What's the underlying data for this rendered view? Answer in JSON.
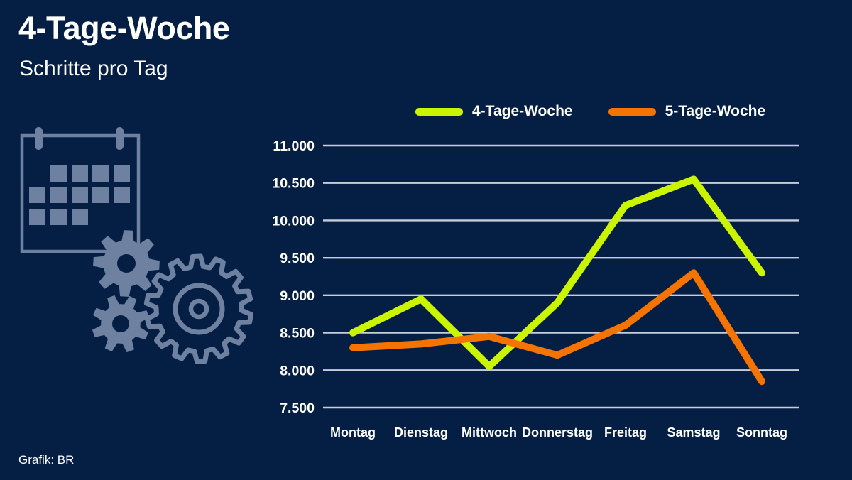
{
  "header": {
    "title": "4-Tage-Woche",
    "subtitle": "Schritte pro Tag"
  },
  "footer": {
    "credit": "Grafik: BR"
  },
  "colors": {
    "background": "#051f44",
    "grid": "#c7ceda",
    "text": "#ffffff",
    "icon": "#6e81a1"
  },
  "icon": {
    "name": "calendar-gears-icon",
    "description": "calendar with two small gears and one large outlined gear"
  },
  "chart_data": {
    "type": "line",
    "title": "",
    "xlabel": "",
    "ylabel": "",
    "grid": "horizontal",
    "legend_position": "top",
    "categories": [
      "Montag",
      "Dienstag",
      "Mittwoch",
      "Donnerstag",
      "Freitag",
      "Samstag",
      "Sonntag"
    ],
    "series": [
      {
        "name": "4-Tage-Woche",
        "color": "#cbf400",
        "values": [
          8500,
          8950,
          8050,
          8900,
          10200,
          10550,
          9300
        ]
      },
      {
        "name": "5-Tage-Woche",
        "color": "#f57300",
        "values": [
          8300,
          8350,
          8450,
          8200,
          8600,
          9300,
          7850
        ]
      }
    ],
    "ylim": [
      7500,
      11000
    ],
    "ytick_step": 500,
    "ytick_labels": [
      "11.000",
      "10.500",
      "10.000",
      "9.500",
      "9.000",
      "8.500",
      "8.000",
      "7.500"
    ]
  }
}
